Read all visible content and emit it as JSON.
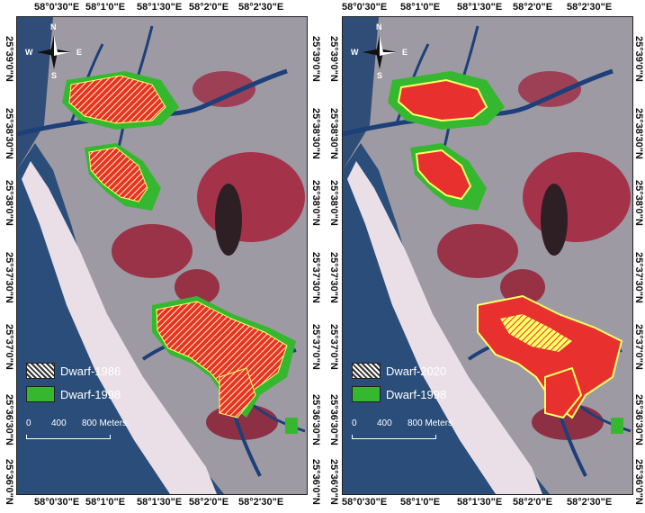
{
  "panels": [
    {
      "id": "left",
      "legend": [
        {
          "label": "Dwarf-1986",
          "style": "hatch"
        },
        {
          "label": "Dwarf-1998",
          "style": "green"
        }
      ],
      "scale": {
        "ticks": [
          "0",
          "400",
          "800 Meters"
        ]
      },
      "top_ticks": [
        "58°0'30\"E",
        "58°1'0\"E",
        "58°1'30\"E",
        "58°2'0\"E",
        "58°2'30\"E"
      ],
      "bottom_ticks": [
        "58°0'30\"E",
        "58°1'0\"E",
        "58°1'30\"E",
        "58°2'0\"E",
        "58°2'30\"E"
      ],
      "left_ticks": [
        "25°39'0\"N",
        "25°38'30\"N",
        "25°38'0\"N",
        "25°37'30\"N",
        "25°37'0\"N",
        "25°36'30\"N",
        "25°36'0\"N"
      ],
      "right_ticks": [
        "25°39'0\"N",
        "25°38'30\"N",
        "25°38'0\"N",
        "25°37'30\"N",
        "25°37'0\"N",
        "25°36'30\"N",
        "25°36'0\"N"
      ]
    },
    {
      "id": "right",
      "legend": [
        {
          "label": "Dwarf-2020",
          "style": "hatch"
        },
        {
          "label": "Dwarf-1998",
          "style": "green"
        }
      ],
      "scale": {
        "ticks": [
          "0",
          "400",
          "800 Meters"
        ]
      },
      "top_ticks": [
        "58°0'30\"E",
        "58°1'0\"E",
        "58°1'30\"E",
        "58°2'0\"E",
        "58°2'30\"E"
      ],
      "bottom_ticks": [
        "58°0'30\"E",
        "58°1'0\"E",
        "58°1'30\"E",
        "58°2'0\"E",
        "58°2'30\"E"
      ],
      "left_ticks": [
        "25°39'0\"N",
        "25°38'30\"N",
        "25°38'0\"N",
        "25°37'30\"N",
        "25°37'0\"N",
        "25°36'30\"N",
        "25°36'0\"N"
      ],
      "right_ticks": [
        "25°39'0\"N",
        "25°38'30\"N",
        "25°38'0\"N",
        "25°37'30\"N",
        "25°37'0\"N",
        "25°36'30\"N",
        "25°36'0\"N"
      ]
    }
  ],
  "compass": {
    "n": "N",
    "s": "S",
    "e": "E",
    "w": "W"
  },
  "colors": {
    "sea": "#2a4d7a",
    "land": "#a9a5aa",
    "beach": "#e8dfe3",
    "vegetation": "#a42a3c",
    "mangrove_red": "#e8312f",
    "mangrove_hatch": "#ffff66",
    "green": "#35b82f"
  }
}
